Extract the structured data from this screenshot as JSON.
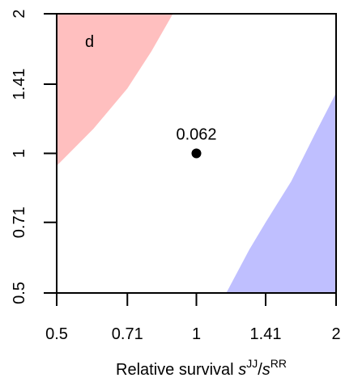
{
  "chart_data": {
    "type": "area",
    "xlim": [
      0.5,
      2
    ],
    "ylim": [
      0.5,
      2
    ],
    "log_scale_x": true,
    "log_scale_y": true,
    "x_ticks": [
      0.5,
      0.71,
      1,
      1.41,
      2
    ],
    "x_tick_labels": [
      "0.5",
      "0.71",
      "1",
      "1.41",
      "2"
    ],
    "y_ticks": [
      0.5,
      0.71,
      1,
      1.41,
      2
    ],
    "y_tick_labels": [
      "0.5",
      "0.71",
      "1",
      "1.41",
      "2"
    ],
    "xlabel": {
      "prefix": "Relative survival ",
      "var1": "s",
      "sup1": "JJ",
      "slash": "/",
      "var2": "s",
      "sup2": "RR"
    },
    "ylabel": "",
    "panel_label": "d",
    "colors": {
      "upper_region": "#ffbfbf",
      "lower_region": "#bfbfff",
      "point": "#000000"
    },
    "regions": [
      {
        "id": "upper-left",
        "color_key": "upper_region",
        "boundary": [
          [
            0.5,
            0.94
          ],
          [
            0.6,
            1.13
          ],
          [
            0.71,
            1.38
          ],
          [
            0.8,
            1.66
          ],
          [
            0.89,
            2.0
          ]
        ],
        "corner": "top-left"
      },
      {
        "id": "lower-right",
        "color_key": "lower_region",
        "boundary": [
          [
            1.16,
            0.5
          ],
          [
            1.3,
            0.62
          ],
          [
            1.41,
            0.71
          ],
          [
            1.6,
            0.87
          ],
          [
            1.8,
            1.1
          ],
          [
            2.0,
            1.35
          ]
        ],
        "corner": "bottom-right"
      }
    ],
    "points": [
      {
        "x": 1,
        "y": 1,
        "label": "0.062"
      }
    ]
  }
}
